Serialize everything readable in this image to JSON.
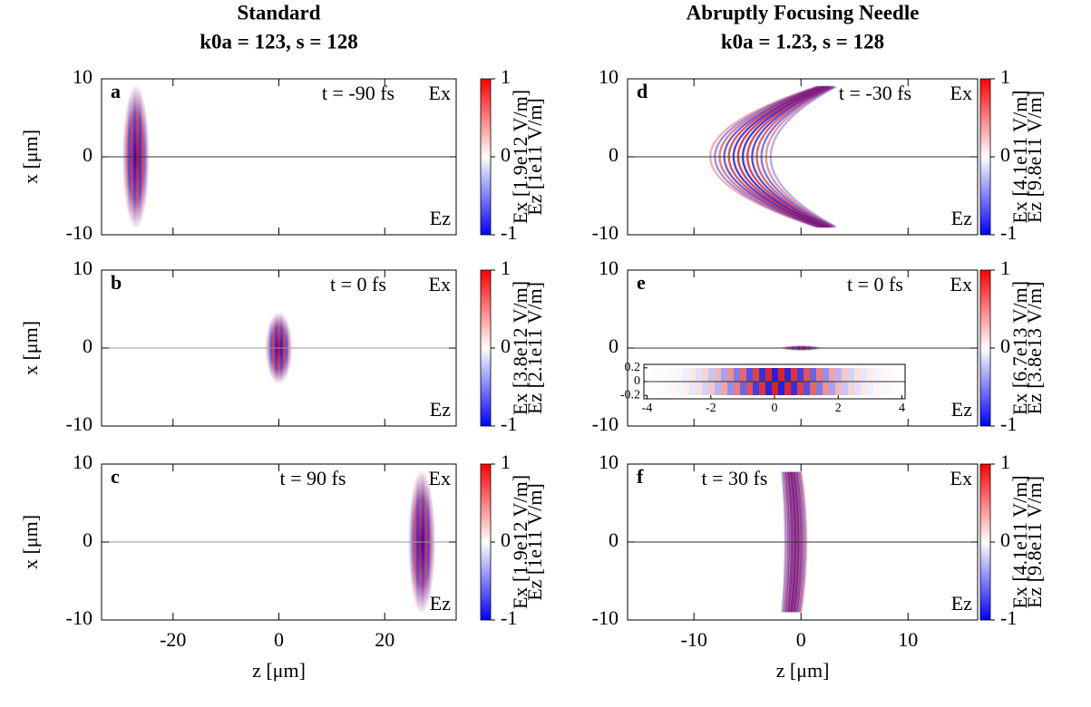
{
  "chart_data": [
    {
      "type": "heatmap",
      "title": "Standard",
      "subtitle": "k0a = 123, s = 128",
      "panel_label": "a",
      "annotation": "t = -90 fs",
      "ylabel": "x [μm]",
      "xlim": [
        -33.5,
        33.5
      ],
      "xticks": [
        -20,
        0,
        20
      ],
      "ylim": [
        -10,
        10
      ],
      "yticks": [
        -10,
        0,
        10
      ],
      "field_labels": [
        "Ex",
        "Ez"
      ],
      "clim": [
        -1,
        1
      ],
      "cticks": [
        -1,
        0,
        1
      ],
      "colorbar_labels": [
        "Ex [1.9e12 V/m]",
        "Ez [1e11 V/m]"
      ]
    },
    {
      "type": "heatmap",
      "panel_label": "b",
      "annotation": "t = 0 fs",
      "ylabel": "x [μm]",
      "xlim": [
        -33.5,
        33.5
      ],
      "xticks": [
        -20,
        0,
        20
      ],
      "ylim": [
        -10,
        10
      ],
      "yticks": [
        -10,
        0,
        10
      ],
      "field_labels": [
        "Ex",
        "Ez"
      ],
      "clim": [
        -1,
        1
      ],
      "cticks": [
        -1,
        0,
        1
      ],
      "colorbar_labels": [
        "Ex [3.8e12 V/m]",
        "Ez [2.1e11 V/m]"
      ]
    },
    {
      "type": "heatmap",
      "panel_label": "c",
      "annotation": "t = 90 fs",
      "xlabel": "z [μm]",
      "ylabel": "x [μm]",
      "xlim": [
        -33.5,
        33.5
      ],
      "xticks": [
        -20,
        0,
        20
      ],
      "ylim": [
        -10,
        10
      ],
      "yticks": [
        -10,
        0,
        10
      ],
      "field_labels": [
        "Ex",
        "Ez"
      ],
      "clim": [
        -1,
        1
      ],
      "cticks": [
        -1,
        0,
        1
      ],
      "colorbar_labels": [
        "Ex [1.9e12 V/m]",
        "Ez [1e11 V/m]"
      ]
    },
    {
      "type": "heatmap",
      "title": "Abruptly Focusing Needle",
      "subtitle": "k0a = 1.23, s = 128",
      "panel_label": "d",
      "annotation": "t = -30 fs",
      "xlim": [
        -16.2,
        16.5
      ],
      "xticks": [
        -10,
        0,
        10
      ],
      "ylim": [
        -10,
        10
      ],
      "yticks": [
        -10,
        0,
        10
      ],
      "field_labels": [
        "Ex",
        "Ez"
      ],
      "clim": [
        -1,
        1
      ],
      "cticks": [
        -1,
        0,
        1
      ],
      "colorbar_labels": [
        "Ex [4.1e11 V/m]",
        "Ez [9.8e11 V/m]"
      ]
    },
    {
      "type": "heatmap",
      "panel_label": "e",
      "annotation": "t = 0 fs",
      "xlim": [
        -16.2,
        16.5
      ],
      "xticks": [
        -10,
        0,
        10
      ],
      "ylim": [
        -10,
        10
      ],
      "yticks": [
        -10,
        0,
        10
      ],
      "field_labels": [
        "Ex",
        "Ez"
      ],
      "clim": [
        -1,
        1
      ],
      "cticks": [
        -1,
        0,
        1
      ],
      "colorbar_labels": [
        "Ex [6.7e13 V/m]",
        "Ez [3.8e13 V/m]"
      ],
      "inset": {
        "xlim": [
          -4.1,
          4.1
        ],
        "xticks": [
          -4,
          -2,
          0,
          2,
          4
        ],
        "ylim": [
          -0.25,
          0.25
        ],
        "yticks": [
          0.2,
          0,
          -0.2
        ]
      }
    },
    {
      "type": "heatmap",
      "panel_label": "f",
      "annotation": "t = 30 fs",
      "xlabel": "z [μm]",
      "xlim": [
        -16.2,
        16.5
      ],
      "xticks": [
        -10,
        0,
        10
      ],
      "ylim": [
        -10,
        10
      ],
      "yticks": [
        -10,
        0,
        10
      ],
      "field_labels": [
        "Ex",
        "Ez"
      ],
      "clim": [
        -1,
        1
      ],
      "cticks": [
        -1,
        0,
        1
      ],
      "colorbar_labels": [
        "Ex [4.1e11 V/m]",
        "Ez [9.8e11 V/m]"
      ]
    }
  ]
}
